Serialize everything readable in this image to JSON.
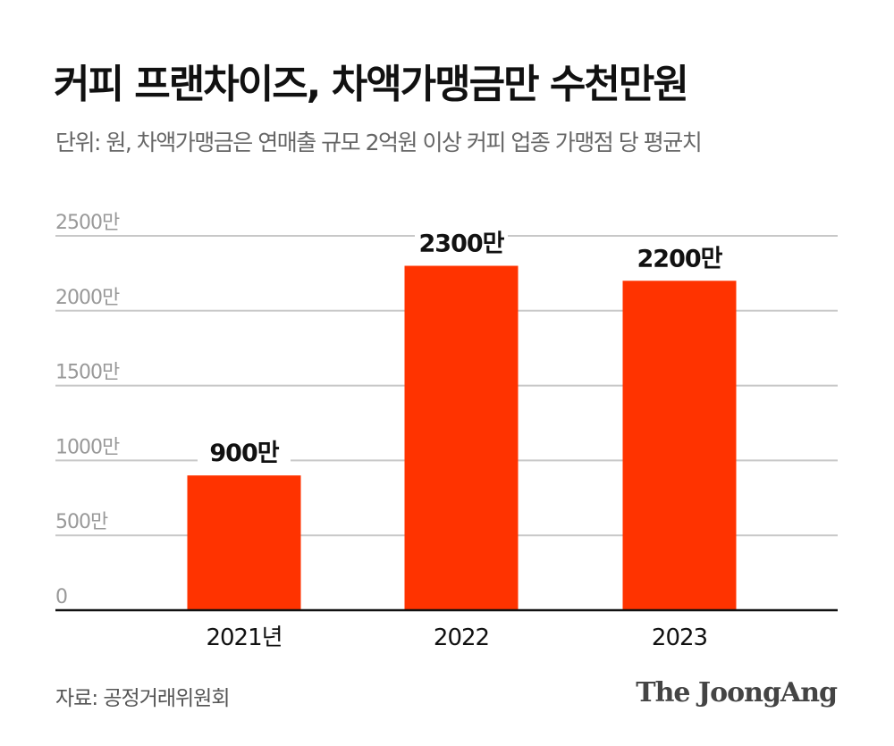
{
  "title": "커피 프랜차이즈, 차액가맹금만 수천만원",
  "subtitle": "단위: 원, 차액가맹금은 연매출 규모 2억원 이상 커피 업종 가맹점 당 평균치",
  "source": "자료: 공정거래위원회",
  "logo": "The JoongAng",
  "chart_data": {
    "type": "bar",
    "categories": [
      "2021년",
      "2022",
      "2023"
    ],
    "values": [
      9000000,
      23000000,
      22000000
    ],
    "data_labels": [
      "900만",
      "2300만",
      "2200만"
    ],
    "ylim": [
      0,
      25000000
    ],
    "yticks": [
      0,
      5000000,
      10000000,
      15000000,
      20000000,
      25000000
    ],
    "ytick_labels": [
      "0",
      "500만",
      "1000만",
      "1500만",
      "2000만",
      "2500만"
    ],
    "grid": true,
    "bar_color": "#ff3300"
  }
}
